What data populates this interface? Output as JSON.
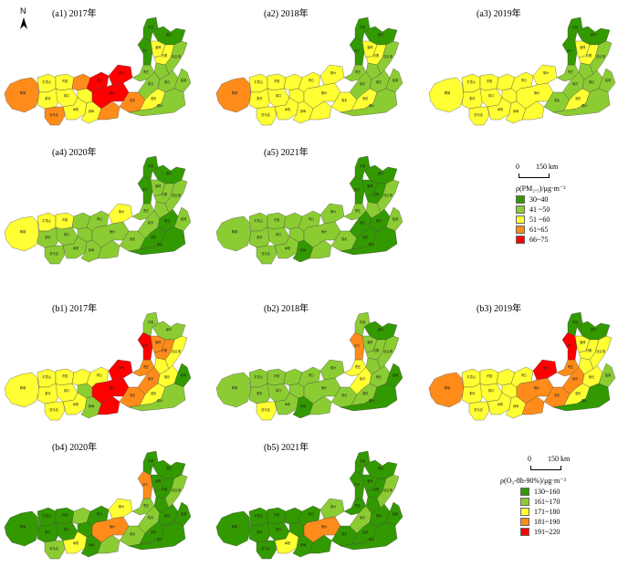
{
  "north_label": "N",
  "map_colors": {
    "outline": "#444444"
  },
  "panels": [
    {
      "id": "a1",
      "title": "(a1) 2017年",
      "ox": 5,
      "oy": 5,
      "cls": [
        3,
        2,
        2,
        2,
        2,
        3,
        3,
        2,
        2,
        2,
        4,
        4,
        4,
        3,
        3,
        1,
        1,
        0,
        0,
        0,
        2,
        2,
        1,
        1,
        1,
        2,
        1,
        1
      ]
    },
    {
      "id": "a2",
      "title": "(a2) 2018年",
      "ox": 237,
      "oy": 5,
      "cls": [
        3,
        2,
        2,
        2,
        2,
        2,
        2,
        2,
        2,
        2,
        2,
        2,
        2,
        2,
        2,
        1,
        1,
        0,
        0,
        0,
        2,
        2,
        1,
        1,
        1,
        2,
        1,
        1
      ]
    },
    {
      "id": "a3",
      "title": "(a3) 2019年",
      "ox": 470,
      "oy": 5,
      "cls": [
        2,
        2,
        2,
        2,
        2,
        2,
        2,
        2,
        2,
        2,
        2,
        2,
        2,
        2,
        1,
        1,
        1,
        0,
        0,
        0,
        2,
        2,
        1,
        1,
        1,
        2,
        1,
        1
      ]
    },
    {
      "id": "a4",
      "title": "(a4) 2020年",
      "ox": 5,
      "oy": 157,
      "cls": [
        2,
        2,
        2,
        1,
        1,
        1,
        1,
        1,
        1,
        1,
        1,
        2,
        1,
        1,
        1,
        1,
        1,
        0,
        0,
        0,
        1,
        1,
        1,
        1,
        0,
        0,
        1,
        0
      ]
    },
    {
      "id": "a5",
      "title": "(a5) 2021年",
      "ox": 237,
      "oy": 157,
      "cls": [
        1,
        1,
        1,
        1,
        1,
        1,
        1,
        1,
        1,
        0,
        1,
        1,
        1,
        1,
        1,
        1,
        0,
        0,
        0,
        0,
        0,
        0,
        1,
        1,
        0,
        0,
        1,
        0
      ]
    },
    {
      "id": "b1",
      "title": "(b1) 2017年",
      "ox": 5,
      "oy": 328,
      "cls": [
        2,
        2,
        2,
        2,
        2,
        2,
        2,
        2,
        1,
        1,
        2,
        4,
        4,
        4,
        3,
        3,
        3,
        4,
        1,
        1,
        3,
        3,
        2,
        2,
        2,
        2,
        0,
        1
      ]
    },
    {
      "id": "b2",
      "title": "(b2) 2018年",
      "ox": 237,
      "oy": 328,
      "cls": [
        1,
        1,
        1,
        1,
        1,
        1,
        2,
        1,
        1,
        0,
        1,
        1,
        1,
        1,
        1,
        2,
        2,
        3,
        1,
        0,
        1,
        1,
        1,
        1,
        1,
        1,
        0,
        0
      ]
    },
    {
      "id": "b3",
      "title": "(b3) 2019年",
      "ox": 470,
      "oy": 328,
      "cls": [
        3,
        2,
        2,
        2,
        2,
        2,
        2,
        2,
        2,
        2,
        2,
        4,
        3,
        3,
        3,
        3,
        3,
        4,
        0,
        0,
        2,
        2,
        2,
        2,
        2,
        2,
        1,
        0
      ]
    },
    {
      "id": "b4",
      "title": "(b4) 2020年",
      "ox": 5,
      "oy": 480,
      "cls": [
        0,
        0,
        0,
        0,
        0,
        1,
        1,
        2,
        0,
        0,
        0,
        2,
        3,
        1,
        1,
        1,
        1,
        3,
        0,
        0,
        0,
        0,
        0,
        1,
        0,
        0,
        0,
        0
      ]
    },
    {
      "id": "b5",
      "title": "(b5) 2021年",
      "ox": 237,
      "oy": 480,
      "cls": [
        0,
        0,
        0,
        0,
        0,
        0,
        0,
        2,
        0,
        0,
        0,
        1,
        3,
        0,
        0,
        0,
        1,
        0,
        0,
        0,
        0,
        0,
        0,
        1,
        0,
        0,
        0,
        0
      ]
    }
  ],
  "legend_pm": {
    "scale_left": "0",
    "scale_right": "150 km",
    "title": "ρ(PM₂.₅)/μg·m⁻³",
    "items": [
      {
        "label": "30~40",
        "color": "#339900"
      },
      {
        "label": "41 ~50",
        "color": "#8ccc33"
      },
      {
        "label": "51 ~60",
        "color": "#ffff33"
      },
      {
        "label": "61~65",
        "color": "#ff8c1a"
      },
      {
        "label": "66~75",
        "color": "#ff0000"
      }
    ]
  },
  "legend_o3": {
    "scale_left": "0",
    "scale_right": "150 km",
    "title": "ρ(O₃-8h-90%)/μg·m⁻³",
    "items": [
      {
        "label": "130~160",
        "color": "#339900"
      },
      {
        "label": "161~170",
        "color": "#8ccc33"
      },
      {
        "label": "171~180",
        "color": "#ffff33"
      },
      {
        "label": "181~190",
        "color": "#ff8c1a"
      },
      {
        "label": "191~220",
        "color": "#ff0000"
      }
    ]
  }
}
